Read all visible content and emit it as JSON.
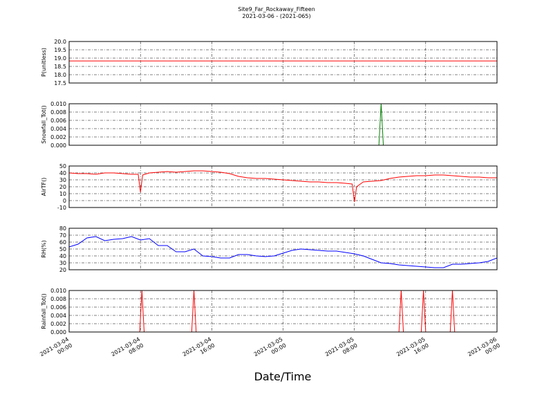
{
  "figure": {
    "title": "Site9_Far_Rockaway_Fifteen",
    "subtitle": "2021-03-06 - (2021-065)",
    "xlabel": "Date/Time",
    "xlim": [
      "2021-03-04 00:00",
      "2021-03-06 00:00"
    ],
    "xticks": [
      "2021-03-04 00:00",
      "2021-03-04 08:00",
      "2021-03-04 16:00",
      "2021-03-05 00:00",
      "2021-03-05 08:00",
      "2021-03-05 16:00",
      "2021-03-06 00:00"
    ],
    "grid": true
  },
  "chart_data": [
    {
      "type": "line",
      "ylabel": "P(unitless)",
      "color": "#ff0000",
      "x": [
        "2021-03-04 00:00",
        "2021-03-06 00:00"
      ],
      "values": [
        18.83,
        18.83
      ],
      "ylim": [
        17.5,
        20
      ],
      "yticks": [
        17.5,
        {
          "value": 18,
          "label": "18.0"
        },
        18.5,
        {
          "value": 19,
          "label": "19.0"
        },
        19.5,
        {
          "value": 20,
          "label": "20.0"
        }
      ]
    },
    {
      "type": "line",
      "ylabel": "Snowfall_Tot()",
      "color": "#008000",
      "x": [
        "2021-03-04 00:00",
        "2021-03-05 10:45",
        "2021-03-05 11:00",
        "2021-03-05 11:15",
        "2021-03-06 00:00"
      ],
      "values": [
        0,
        0,
        0.01,
        0,
        0
      ],
      "ylim": [
        0,
        0.01
      ],
      "yticks": [
        {
          "value": 0,
          "label": "0.000"
        },
        0.002,
        0.004,
        0.006,
        0.008,
        {
          "value": 0.01,
          "label": "0.010"
        }
      ]
    },
    {
      "type": "line",
      "ylabel": "AirTF()",
      "color": "#ff0000",
      "x": [
        "2021-03-04 00:00",
        "2021-03-04 01:00",
        "2021-03-04 02:00",
        "2021-03-04 03:00",
        "2021-03-04 04:00",
        "2021-03-04 05:00",
        "2021-03-04 06:00",
        "2021-03-04 07:00",
        "2021-03-04 07:45",
        "2021-03-04 08:00",
        "2021-03-04 08:15",
        "2021-03-04 09:00",
        "2021-03-04 10:00",
        "2021-03-04 11:00",
        "2021-03-04 12:00",
        "2021-03-04 13:00",
        "2021-03-04 14:00",
        "2021-03-04 15:00",
        "2021-03-04 16:00",
        "2021-03-04 17:00",
        "2021-03-04 18:00",
        "2021-03-04 19:00",
        "2021-03-04 20:00",
        "2021-03-04 21:00",
        "2021-03-04 22:00",
        "2021-03-04 23:00",
        "2021-03-05 00:00",
        "2021-03-05 01:00",
        "2021-03-05 02:00",
        "2021-03-05 03:00",
        "2021-03-05 04:00",
        "2021-03-05 05:00",
        "2021-03-05 06:00",
        "2021-03-05 07:00",
        "2021-03-05 07:45",
        "2021-03-05 08:00",
        "2021-03-05 08:15",
        "2021-03-05 09:00",
        "2021-03-05 10:00",
        "2021-03-05 11:00",
        "2021-03-05 12:00",
        "2021-03-05 13:00",
        "2021-03-05 14:00",
        "2021-03-05 15:00",
        "2021-03-05 16:00",
        "2021-03-05 17:00",
        "2021-03-05 18:00",
        "2021-03-05 19:00",
        "2021-03-05 20:00",
        "2021-03-05 21:00",
        "2021-03-05 22:00",
        "2021-03-05 23:00",
        "2021-03-06 00:00"
      ],
      "values": [
        40,
        39,
        39,
        38,
        40,
        40,
        39,
        38,
        38,
        12,
        37,
        40,
        41,
        42,
        41,
        42,
        43,
        43,
        42,
        41,
        39,
        35,
        33,
        32,
        32,
        31,
        30,
        29,
        28,
        27,
        27,
        26,
        26,
        25,
        24,
        -2,
        20,
        27,
        28,
        29,
        32,
        34,
        35,
        36,
        36,
        37,
        37,
        36,
        35,
        34,
        34,
        33,
        33
      ],
      "ylim": [
        -10,
        50
      ],
      "yticks": [
        -10,
        0,
        10,
        20,
        30,
        40,
        50
      ]
    },
    {
      "type": "line",
      "ylabel": "RH(%)",
      "color": "#0000ff",
      "x": [
        "2021-03-04 00:00",
        "2021-03-04 01:00",
        "2021-03-04 02:00",
        "2021-03-04 03:00",
        "2021-03-04 04:00",
        "2021-03-04 05:00",
        "2021-03-04 06:00",
        "2021-03-04 07:00",
        "2021-03-04 08:00",
        "2021-03-04 09:00",
        "2021-03-04 10:00",
        "2021-03-04 11:00",
        "2021-03-04 12:00",
        "2021-03-04 13:00",
        "2021-03-04 14:00",
        "2021-03-04 15:00",
        "2021-03-04 16:00",
        "2021-03-04 17:00",
        "2021-03-04 18:00",
        "2021-03-04 19:00",
        "2021-03-04 20:00",
        "2021-03-04 21:00",
        "2021-03-04 22:00",
        "2021-03-04 23:00",
        "2021-03-05 00:00",
        "2021-03-05 01:00",
        "2021-03-05 02:00",
        "2021-03-05 03:00",
        "2021-03-05 04:00",
        "2021-03-05 05:00",
        "2021-03-05 06:00",
        "2021-03-05 07:00",
        "2021-03-05 08:00",
        "2021-03-05 09:00",
        "2021-03-05 10:00",
        "2021-03-05 11:00",
        "2021-03-05 12:00",
        "2021-03-05 13:00",
        "2021-03-05 14:00",
        "2021-03-05 15:00",
        "2021-03-05 16:00",
        "2021-03-05 17:00",
        "2021-03-05 18:00",
        "2021-03-05 19:00",
        "2021-03-05 20:00",
        "2021-03-05 21:00",
        "2021-03-05 22:00",
        "2021-03-05 23:00",
        "2021-03-06 00:00"
      ],
      "values": [
        53,
        57,
        66,
        68,
        62,
        64,
        65,
        68,
        63,
        65,
        55,
        55,
        46,
        46,
        50,
        40,
        39,
        37,
        37,
        42,
        42,
        40,
        39,
        40,
        44,
        48,
        50,
        49,
        48,
        47,
        47,
        45,
        43,
        40,
        35,
        30,
        29,
        27,
        26,
        25,
        24,
        23,
        23,
        28,
        28,
        29,
        30,
        32,
        37
      ],
      "ylim": [
        20,
        80
      ],
      "yticks": [
        20,
        30,
        40,
        50,
        60,
        70,
        80
      ]
    },
    {
      "type": "line",
      "ylabel": "Rainfall_Tot()",
      "color": "#ff0000",
      "x": [
        "2021-03-04 00:00",
        "2021-03-04 07:55",
        "2021-03-04 08:10",
        "2021-03-04 08:25",
        "2021-03-04 13:45",
        "2021-03-04 14:00",
        "2021-03-04 14:15",
        "2021-03-05 13:00",
        "2021-03-05 13:15",
        "2021-03-05 13:30",
        "2021-03-05 15:30",
        "2021-03-05 15:45",
        "2021-03-05 16:00",
        "2021-03-05 18:45",
        "2021-03-05 19:00",
        "2021-03-05 19:15",
        "2021-03-06 00:00"
      ],
      "values": [
        0,
        0,
        0.01,
        0,
        0,
        0.01,
        0,
        0,
        0.01,
        0,
        0,
        0.01,
        0,
        0,
        0.01,
        0,
        0
      ],
      "ylim": [
        0,
        0.01
      ],
      "yticks": [
        {
          "value": 0,
          "label": "0.000"
        },
        0.002,
        0.004,
        0.006,
        0.008,
        {
          "value": 0.01,
          "label": "0.010"
        }
      ]
    }
  ]
}
